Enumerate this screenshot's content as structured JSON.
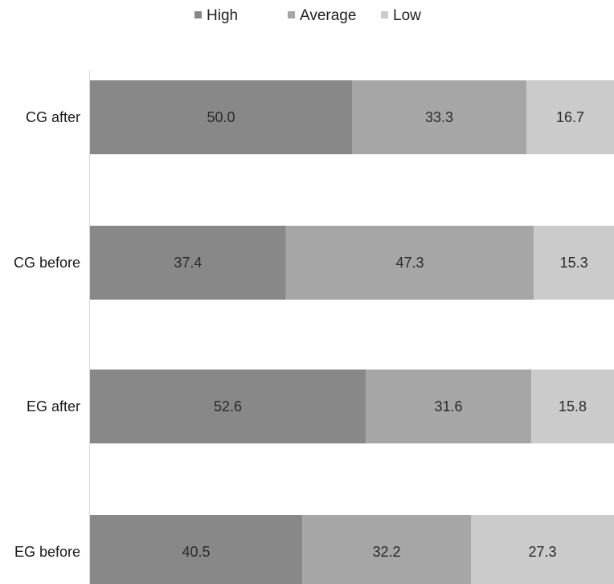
{
  "chart_data": {
    "type": "bar",
    "orientation": "horizontal",
    "stacked": true,
    "normalized": "100%",
    "categories": [
      "CG after",
      "CG before",
      "EG after",
      "EG before"
    ],
    "series": [
      {
        "name": "High",
        "color": "#888888",
        "values": [
          50.0,
          37.4,
          52.6,
          40.5
        ]
      },
      {
        "name": "Average",
        "color": "#a6a6a6",
        "values": [
          33.3,
          47.3,
          31.6,
          32.2
        ]
      },
      {
        "name": "Low",
        "color": "#cbcbcb",
        "values": [
          16.7,
          15.3,
          15.8,
          27.3
        ]
      }
    ],
    "data_labels": [
      [
        "50.0",
        "33.3",
        "16.7"
      ],
      [
        "37.4",
        "47.3",
        "15.3"
      ],
      [
        "52.6",
        "31.6",
        "15.8"
      ],
      [
        "40.5",
        "32.2",
        "27.3"
      ]
    ],
    "legend_position": "top",
    "xlim": [
      0,
      100
    ],
    "grid": false
  }
}
